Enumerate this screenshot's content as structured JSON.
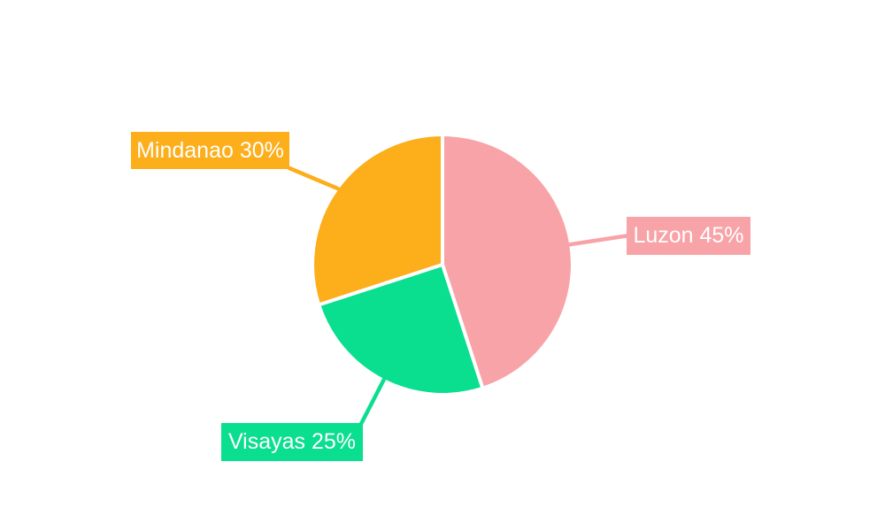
{
  "chart_data": {
    "type": "pie",
    "title": "",
    "slices": [
      {
        "label": "Luzon",
        "value": 45,
        "display": "Luzon 45%",
        "color": "#F8A3A8"
      },
      {
        "label": "Visayas",
        "value": 25,
        "display": "Visayas 25%",
        "color": "#0ADE8F"
      },
      {
        "label": "Mindanao",
        "value": 30,
        "display": "Mindanao 30%",
        "color": "#FCAE1B"
      }
    ],
    "start_angle": "top",
    "direction": "clockwise",
    "slice_separator_color": "#FFFFFF",
    "label_style": "callout-boxes-with-leader-lines",
    "label_text_color": "#FFFFFF",
    "background": "#FFFFFF",
    "legend": "none"
  }
}
